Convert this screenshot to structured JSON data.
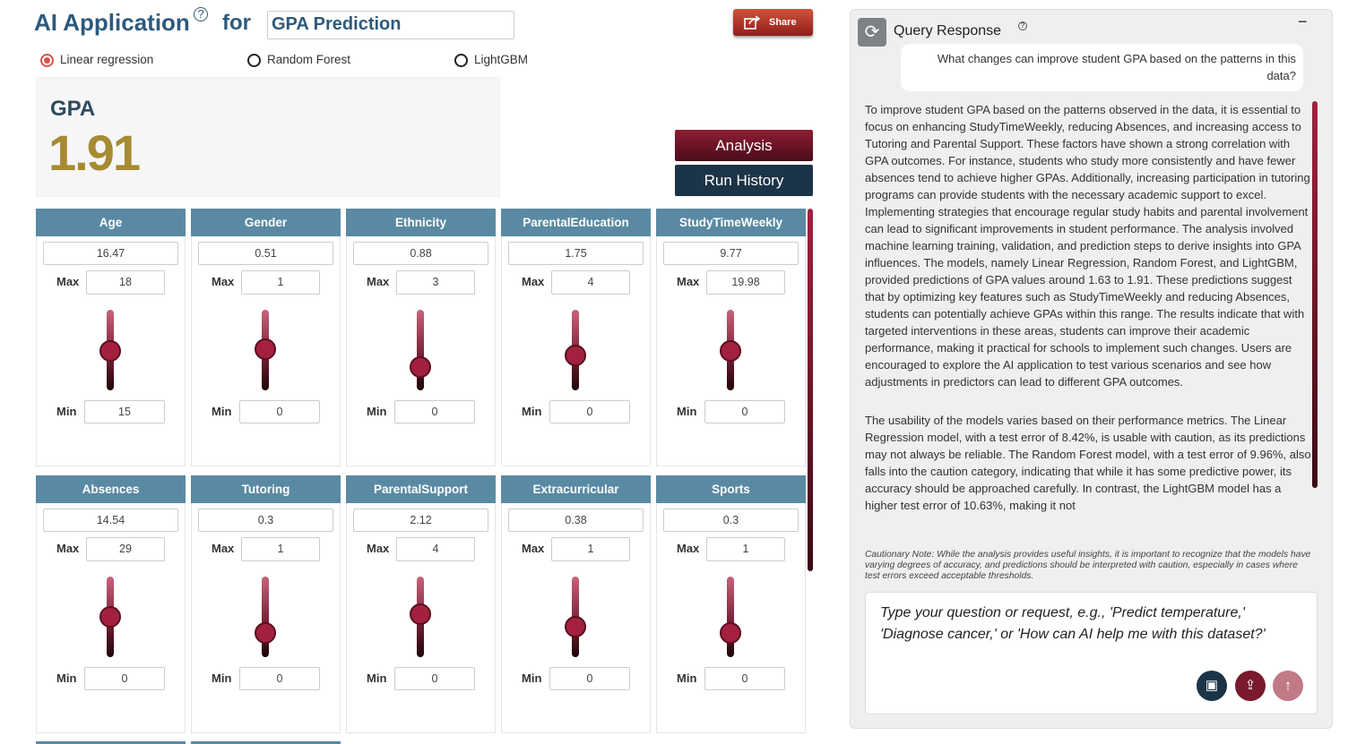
{
  "header": {
    "title": "AI Application",
    "connector": "for",
    "target": "GPA Prediction",
    "share": "Share"
  },
  "models": [
    {
      "label": "Linear regression",
      "selected": true
    },
    {
      "label": "Random Forest",
      "selected": false
    },
    {
      "label": "LightGBM",
      "selected": false
    }
  ],
  "result": {
    "label": "GPA",
    "value": 1.91
  },
  "buttons": {
    "analysis": "Analysis",
    "run_history": "Run History"
  },
  "labels": {
    "max": "Max",
    "min": "Min"
  },
  "features": [
    {
      "name": "Age",
      "value": 16.47,
      "max": 18,
      "min": 15
    },
    {
      "name": "Gender",
      "value": 0.51,
      "max": 1,
      "min": 0
    },
    {
      "name": "Ethnicity",
      "value": 0.88,
      "max": 3,
      "min": 0
    },
    {
      "name": "ParentalEducation",
      "value": 1.75,
      "max": 4,
      "min": 0
    },
    {
      "name": "StudyTimeWeekly",
      "value": 9.77,
      "max": 19.98,
      "min": 0
    },
    {
      "name": "Absences",
      "value": 14.54,
      "max": 29,
      "min": 0
    },
    {
      "name": "Tutoring",
      "value": 0.3,
      "max": 1,
      "min": 0
    },
    {
      "name": "ParentalSupport",
      "value": 2.12,
      "max": 4,
      "min": 0
    },
    {
      "name": "Extracurricular",
      "value": 0.38,
      "max": 1,
      "min": 0
    },
    {
      "name": "Sports",
      "value": 0.3,
      "max": 1,
      "min": 0
    }
  ],
  "query": {
    "title": "Query Response",
    "collapse": "−",
    "question": "What changes can improve student GPA based on the patterns in this data?",
    "answer": [
      "To improve student GPA based on the patterns observed in the data, it is essential to focus on enhancing StudyTimeWeekly, reducing Absences, and increasing access to Tutoring and Parental Support. These factors have shown a strong correlation with GPA outcomes. For instance, students who study more consistently and have fewer absences tend to achieve higher GPAs. Additionally, increasing participation in tutoring programs can provide students with the necessary academic support to excel. Implementing strategies that encourage regular study habits and parental involvement can lead to significant improvements in student performance. The analysis involved machine learning training, validation, and prediction steps to derive insights into GPA influences. The models, namely Linear Regression, Random Forest, and LightGBM, provided predictions of GPA values around 1.63 to 1.91. These predictions suggest that by optimizing key features such as StudyTimeWeekly and reducing Absences, students can potentially achieve GPAs within this range. The results indicate that with targeted interventions in these areas, students can improve their academic performance, making it practical for schools to implement such changes. Users are encouraged to explore the AI application to test various scenarios and see how adjustments in predictors can lead to different GPA outcomes.",
      "The usability of the models varies based on their performance metrics. The Linear Regression model, with a test error of 8.42%, is usable with caution, as its predictions may not always be reliable. The Random Forest model, with a test error of 9.96%, also falls into the caution category, indicating that while it has some predictive power, its accuracy should be approached carefully. In contrast, the LightGBM model has a higher test error of 10.63%, making it not"
    ],
    "note": "Cautionary Note: While the analysis provides useful insights, it is important to recognize that the models have varying degrees of accuracy, and predictions should be interpreted with caution, especially in cases where test errors exceed acceptable thresholds.",
    "placeholder": "Type your question or request, e.g., 'Predict temperature,' 'Diagnose cancer,' or 'How can AI help me with this dataset?'"
  }
}
